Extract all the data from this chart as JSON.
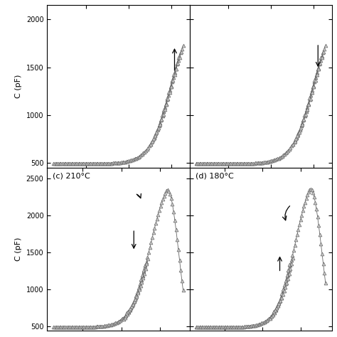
{
  "panels": [
    {
      "label": "",
      "row": 0,
      "col": 0,
      "ylim": [
        450,
        2150
      ],
      "yticks": [
        500,
        1000,
        1500,
        2000
      ],
      "show_ylabel": true,
      "loop_type": "partial_up"
    },
    {
      "label": "",
      "row": 0,
      "col": 1,
      "ylim": [
        450,
        2150
      ],
      "yticks": [
        500,
        1000,
        1500,
        2000
      ],
      "show_ylabel": false,
      "loop_type": "partial_down"
    },
    {
      "label": "(c) 210°C",
      "row": 1,
      "col": 0,
      "ylim": [
        450,
        2650
      ],
      "yticks": [
        500,
        1000,
        1500,
        2000,
        2500
      ],
      "show_ylabel": true,
      "loop_type": "full_loop_c"
    },
    {
      "label": "(d) 180°C",
      "row": 1,
      "col": 1,
      "ylim": [
        450,
        2650
      ],
      "yticks": [
        500,
        1000,
        1500,
        2000,
        2500
      ],
      "show_ylabel": false,
      "loop_type": "full_loop_d"
    }
  ],
  "marker": "^",
  "markersize": 3.5,
  "linewidth": 0.6,
  "color": "#666666",
  "markerfacecolor": "#cccccc",
  "markeredgewidth": 0.5,
  "background": "#ffffff",
  "figsize": [
    4.74,
    4.74
  ],
  "dpi": 100
}
